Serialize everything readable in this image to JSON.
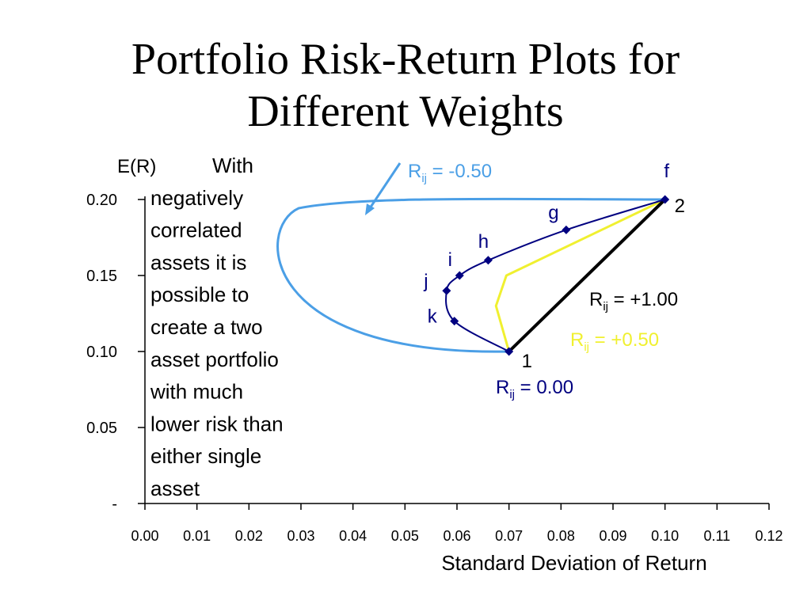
{
  "title_lines": [
    "Portfolio Risk-Return Plots for",
    "Different Weights"
  ],
  "colors": {
    "negative": "#4b9fe6",
    "zero": "#000080",
    "half": "#f0f030",
    "one": "#000000",
    "marker": "#000080"
  },
  "chart_data": {
    "type": "line",
    "ylabel": "E(R)",
    "xlabel": "Standard Deviation of Return",
    "xlim": [
      0,
      0.12
    ],
    "ylim": [
      0,
      0.2
    ],
    "x_ticks": [
      "0.00",
      "0.01",
      "0.02",
      "0.03",
      "0.04",
      "0.05",
      "0.06",
      "0.07",
      "0.08",
      "0.09",
      "0.10",
      "0.11",
      "0.12"
    ],
    "y_ticks": [
      {
        "value": 0,
        "label": "-"
      },
      {
        "value": 0.05,
        "label": "0.05"
      },
      {
        "value": 0.1,
        "label": "0.10"
      },
      {
        "value": 0.15,
        "label": "0.15"
      },
      {
        "value": 0.2,
        "label": "0.20"
      }
    ],
    "series": [
      {
        "key": "neg",
        "label_main": "R",
        "label_sub": "ij",
        "label_rest": " = -0.50",
        "color_key": "negative",
        "points": [
          [
            0.07,
            0.1
          ],
          [
            0.025,
            0.15
          ],
          [
            0.1,
            0.2
          ]
        ]
      },
      {
        "key": "zero",
        "label_main": "R",
        "label_sub": "ij",
        "label_rest": " = 0.00",
        "color_key": "zero",
        "points": [
          [
            0.07,
            0.1
          ],
          [
            0.0595,
            0.12
          ],
          [
            0.058,
            0.14
          ],
          [
            0.0605,
            0.15
          ],
          [
            0.066,
            0.16
          ],
          [
            0.081,
            0.18
          ],
          [
            0.1,
            0.2
          ]
        ]
      },
      {
        "key": "half",
        "label_main": "R",
        "label_sub": "ij",
        "label_rest": " = +0.50",
        "color_key": "half",
        "points": [
          [
            0.07,
            0.1
          ],
          [
            0.0675,
            0.13
          ],
          [
            0.0695,
            0.15
          ],
          [
            0.1,
            0.2
          ]
        ]
      },
      {
        "key": "one",
        "label_main": "R",
        "label_sub": "ij",
        "label_rest": " = +1.00",
        "color_key": "one",
        "points": [
          [
            0.07,
            0.1
          ],
          [
            0.1,
            0.2
          ]
        ]
      }
    ],
    "markers": [
      {
        "x": 0.07,
        "y": 0.1,
        "label": "1"
      },
      {
        "x": 0.0595,
        "y": 0.12,
        "label": "k"
      },
      {
        "x": 0.058,
        "y": 0.14,
        "label": "j"
      },
      {
        "x": 0.0605,
        "y": 0.15,
        "label": "i"
      },
      {
        "x": 0.066,
        "y": 0.16,
        "label": "h"
      },
      {
        "x": 0.081,
        "y": 0.18,
        "label": "g"
      },
      {
        "x": 0.1,
        "y": 0.2,
        "label": "2"
      }
    ],
    "extra_labels": [
      {
        "key": "f",
        "text": "f"
      }
    ],
    "annotation_lines": [
      "With",
      "negatively",
      "correlated",
      "assets it is",
      "possible to",
      "create a two",
      "asset portfolio",
      "with much",
      "lower risk than",
      "either single",
      "asset"
    ]
  }
}
